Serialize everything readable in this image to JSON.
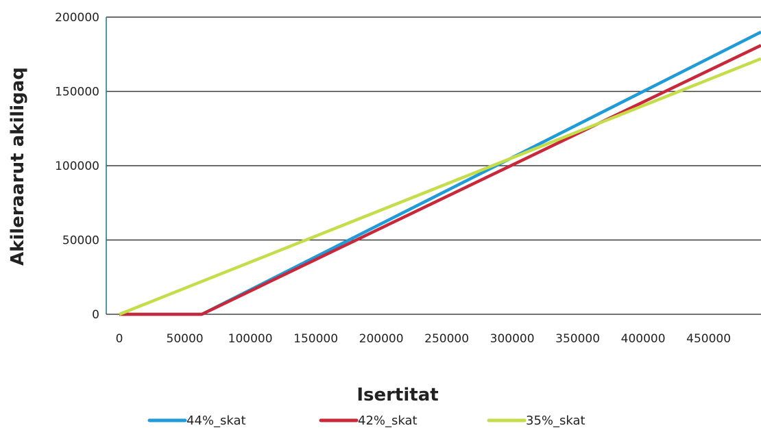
{
  "chart_data": {
    "type": "line",
    "title": "",
    "xlabel": "Isertitat",
    "ylabel": "Akileraarut akiligaq",
    "xlim": [
      -10000,
      490000
    ],
    "ylim": [
      0,
      200000
    ],
    "xticks": [
      0,
      50000,
      100000,
      150000,
      200000,
      250000,
      300000,
      350000,
      400000,
      450000
    ],
    "yticks": [
      0,
      50000,
      100000,
      150000,
      200000
    ],
    "grid": "horizontal",
    "legend_position": "bottom",
    "series": [
      {
        "name": "44%_skat",
        "color": "#1f9bd7",
        "x": [
          0,
          63000,
          490000
        ],
        "y": [
          0,
          0,
          190000
        ]
      },
      {
        "name": "42%_skat",
        "color": "#c8283a",
        "x": [
          0,
          63000,
          490000
        ],
        "y": [
          0,
          0,
          181000
        ]
      },
      {
        "name": "35%_skat",
        "color": "#c5dd4b",
        "x": [
          0,
          490000
        ],
        "y": [
          0,
          172000
        ]
      }
    ]
  }
}
